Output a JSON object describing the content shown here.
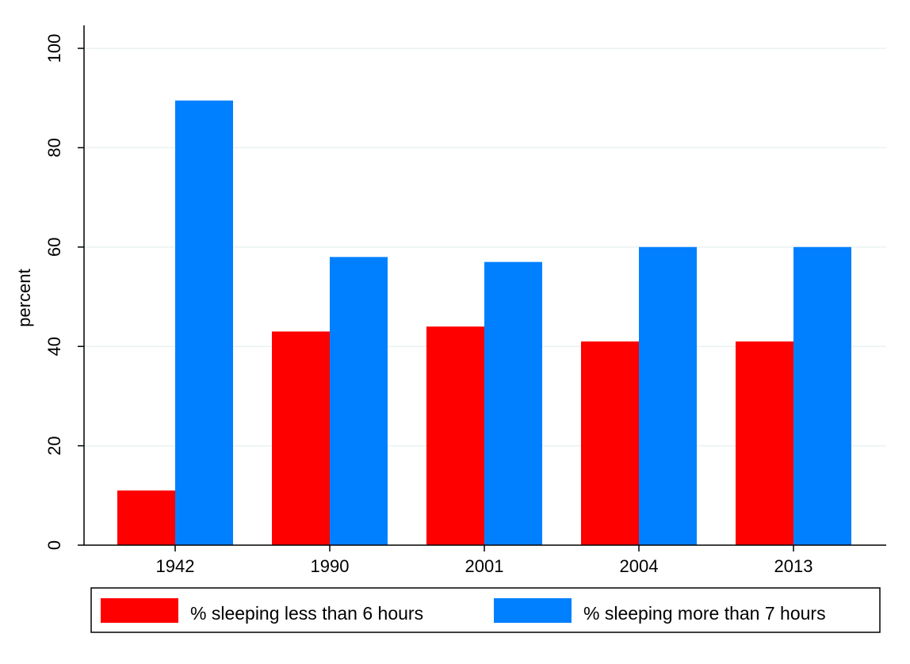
{
  "chart_data": {
    "type": "bar",
    "title": "",
    "xlabel": "",
    "ylabel": "percent",
    "ylim": [
      0,
      100
    ],
    "yticks": [
      0,
      20,
      40,
      60,
      80,
      100
    ],
    "categories": [
      "1942",
      "1990",
      "2001",
      "2004",
      "2013"
    ],
    "series": [
      {
        "name": "% sleeping less than 6 hours",
        "color": "#ff0000",
        "values": [
          11,
          43,
          44,
          41,
          41
        ]
      },
      {
        "name": "% sleeping more than 7 hours",
        "color": "#0080ff",
        "values": [
          89.5,
          58,
          57,
          60,
          60
        ]
      }
    ],
    "grid": true,
    "legend_position": "bottom"
  }
}
